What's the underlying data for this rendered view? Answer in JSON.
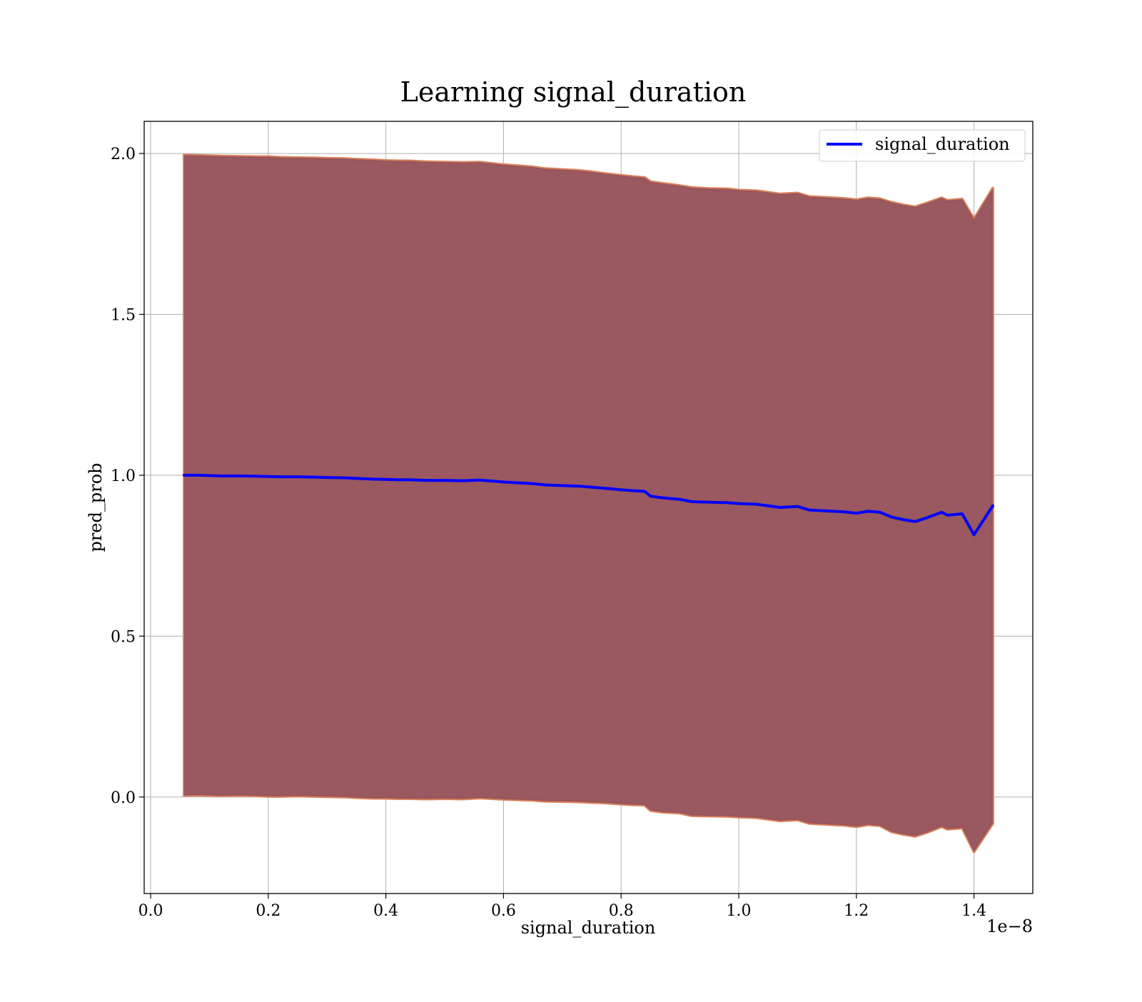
{
  "chart_data": {
    "type": "line",
    "title": "Learning signal_duration",
    "xlabel": "signal_duration",
    "ylabel": "pred_prob",
    "x_offset_label": "1e−8",
    "x_scale": 1e-08,
    "xlim": [
      -0.011,
      1.5
    ],
    "ylim": [
      -0.3,
      2.1
    ],
    "x_ticks": [
      0.0,
      0.2,
      0.4,
      0.6,
      0.8,
      1.0,
      1.2,
      1.4
    ],
    "x_tick_labels": [
      "0.0",
      "0.2",
      "0.4",
      "0.6",
      "0.8",
      "1.0",
      "1.2",
      "1.4"
    ],
    "y_ticks": [
      0.0,
      0.5,
      1.0,
      1.5,
      2.0
    ],
    "y_tick_labels": [
      "0.0",
      "0.5",
      "1.0",
      "1.5",
      "2.0"
    ],
    "grid": true,
    "legend": {
      "position": "top-right",
      "entries": [
        "signal_duration"
      ]
    },
    "colors": {
      "line": "#0000ff",
      "band": "#8b4a5c",
      "band_edge": "#d9825b",
      "grid": "#b0b0b0"
    },
    "series": [
      {
        "name": "signal_duration",
        "x": [
          0.057,
          0.08,
          0.1,
          0.12,
          0.15,
          0.18,
          0.2,
          0.22,
          0.25,
          0.28,
          0.3,
          0.33,
          0.35,
          0.38,
          0.4,
          0.42,
          0.44,
          0.47,
          0.5,
          0.53,
          0.56,
          0.58,
          0.6,
          0.63,
          0.65,
          0.67,
          0.7,
          0.73,
          0.75,
          0.77,
          0.8,
          0.82,
          0.84,
          0.85,
          0.87,
          0.9,
          0.92,
          0.95,
          0.98,
          1.0,
          1.03,
          1.05,
          1.07,
          1.1,
          1.12,
          1.14,
          1.16,
          1.18,
          1.2,
          1.22,
          1.24,
          1.26,
          1.28,
          1.3,
          1.32,
          1.345,
          1.355,
          1.38,
          1.4,
          1.432
        ],
        "values": [
          1.0,
          1.0,
          0.999,
          0.998,
          0.998,
          0.997,
          0.996,
          0.995,
          0.995,
          0.994,
          0.993,
          0.992,
          0.99,
          0.988,
          0.987,
          0.986,
          0.986,
          0.984,
          0.984,
          0.983,
          0.985,
          0.982,
          0.979,
          0.976,
          0.974,
          0.97,
          0.968,
          0.966,
          0.963,
          0.96,
          0.955,
          0.952,
          0.95,
          0.935,
          0.93,
          0.925,
          0.918,
          0.916,
          0.915,
          0.912,
          0.91,
          0.905,
          0.9,
          0.903,
          0.892,
          0.89,
          0.888,
          0.886,
          0.882,
          0.888,
          0.885,
          0.87,
          0.862,
          0.856,
          0.868,
          0.885,
          0.876,
          0.88,
          0.815,
          0.905
        ],
        "upper": [
          1.995,
          1.994,
          1.993,
          1.992,
          1.991,
          1.99,
          1.99,
          1.988,
          1.987,
          1.986,
          1.985,
          1.984,
          1.982,
          1.98,
          1.978,
          1.977,
          1.977,
          1.974,
          1.973,
          1.972,
          1.973,
          1.969,
          1.965,
          1.961,
          1.958,
          1.953,
          1.95,
          1.947,
          1.943,
          1.938,
          1.932,
          1.928,
          1.925,
          1.912,
          1.907,
          1.9,
          1.894,
          1.891,
          1.89,
          1.886,
          1.884,
          1.879,
          1.874,
          1.877,
          1.866,
          1.864,
          1.862,
          1.86,
          1.856,
          1.862,
          1.859,
          1.848,
          1.84,
          1.834,
          1.846,
          1.862,
          1.854,
          1.858,
          1.796,
          1.892
        ],
        "lower": [
          0.005,
          0.006,
          0.005,
          0.004,
          0.005,
          0.004,
          0.002,
          0.002,
          0.003,
          0.002,
          0.001,
          0.0,
          -0.002,
          -0.004,
          -0.004,
          -0.005,
          -0.005,
          -0.006,
          -0.005,
          -0.006,
          -0.003,
          -0.005,
          -0.007,
          -0.009,
          -0.01,
          -0.013,
          -0.014,
          -0.015,
          -0.017,
          -0.018,
          -0.022,
          -0.024,
          -0.025,
          -0.042,
          -0.047,
          -0.05,
          -0.058,
          -0.059,
          -0.06,
          -0.062,
          -0.064,
          -0.069,
          -0.074,
          -0.071,
          -0.082,
          -0.084,
          -0.086,
          -0.088,
          -0.092,
          -0.086,
          -0.089,
          -0.108,
          -0.116,
          -0.122,
          -0.11,
          -0.092,
          -0.1,
          -0.096,
          -0.17,
          -0.082
        ]
      }
    ]
  }
}
